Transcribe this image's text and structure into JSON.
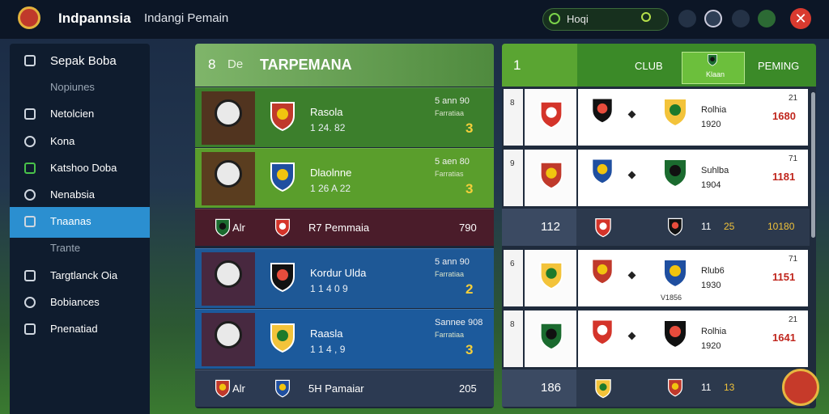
{
  "top_bar": {
    "title": "Indpannsia",
    "subtitle": "Indangi Pemain",
    "search": "Hoqi"
  },
  "sidebar": {
    "items": [
      "Sepak Boba",
      "Nopiunes",
      "Netolcien",
      "Kona",
      "Katshoo Doba",
      "Nenabsia",
      "Tnaanas",
      "Trante",
      "Targtlanck Oia",
      "Bobiances",
      "Pnenatiad"
    ],
    "active": 6
  },
  "left_panel": {
    "header": {
      "number": "8",
      "tag": "De",
      "title": "TARPEMANA"
    },
    "rows": [
      {
        "kind": "player",
        "color": "#3c7f2c",
        "name": "Rasola",
        "stats": "1 24. 82",
        "label": "5 ann 90",
        "sub": "Farratiaa",
        "rank": "3"
      },
      {
        "kind": "player",
        "color": "#5a9e2c",
        "name": "Dlaolnne",
        "stats": "1 26 A 22",
        "label": "5 aen 80",
        "sub": "Farratias",
        "rank": "3"
      },
      {
        "kind": "summary",
        "color": "#4a1c2a",
        "code": "Alr",
        "name": "R7 Pemmaia",
        "value": "790"
      },
      {
        "kind": "player",
        "color": "#1e5896",
        "name": "Kordur Ulda",
        "stats": "1 1 4 0 9",
        "label": "5 ann 90",
        "sub": "Farratiaa",
        "rank": "2"
      },
      {
        "kind": "player",
        "color": "#1c5a9c",
        "name": "Raasla",
        "stats": "1 1 4 , 9",
        "label": "Sannee 908",
        "sub": "Farratiaa",
        "rank": "3"
      },
      {
        "kind": "summary",
        "color": "#2c3a52",
        "code": "Alr",
        "name": "5H Pamaiar",
        "value": "205"
      }
    ]
  },
  "right_panel": {
    "header": {
      "number": "1",
      "columns": [
        "CLUB",
        "Klaan",
        "PEMING"
      ]
    },
    "rows": [
      {
        "kind": "card",
        "index": "8",
        "club": "Rolhia",
        "year": "1920",
        "top": "21",
        "value": "1680"
      },
      {
        "kind": "card",
        "index": "9",
        "club": "Suhlba",
        "year": "1904",
        "top": "71",
        "value": "1181"
      },
      {
        "kind": "summary",
        "index": "112",
        "a": "11",
        "b": "25",
        "value": "10180"
      },
      {
        "kind": "card",
        "index": "6",
        "club": "Rlub6",
        "year": "1930",
        "top": "71",
        "value": "1151",
        "note": "V1856"
      },
      {
        "kind": "card",
        "index": "8",
        "club": "Rolhia",
        "year": "1920",
        "top": "21",
        "value": "1641"
      },
      {
        "kind": "summary",
        "index": "186",
        "a": "11",
        "b": "13",
        "value": ""
      }
    ]
  }
}
